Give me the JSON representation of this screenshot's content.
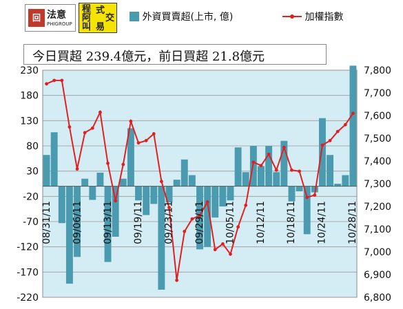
{
  "headline": "今日買超 239.4億元，前日買超 21.8億元",
  "logos": {
    "phigroup_name": "法意",
    "phigroup_sub": "PHIGROUP",
    "phigroup_mark": "回",
    "program_chars": [
      "程",
      "式",
      "阿",
      "交",
      "叫",
      "易"
    ]
  },
  "legend": {
    "bar_label": "外資買賣超(上市, 億)",
    "line_label": "加權指數"
  },
  "colors": {
    "bars": "#4a9bb0",
    "line": "#e02020",
    "plot_bg": "#d4ecf4",
    "grid": "#9a9a9a"
  },
  "chart_data": {
    "type": "bar+line",
    "x_tick_labels": [
      "08/31/11",
      "09/06/11",
      "09/13/11",
      "09/19/11",
      "09/23/11",
      "09/29/11",
      "10/05/11",
      "10/12/11",
      "10/18/11",
      "10/24/11",
      "10/28/11"
    ],
    "left_axis": {
      "ylim": [
        -220,
        230
      ],
      "ticks": [
        230,
        180,
        130,
        80,
        30,
        -20,
        -70,
        -120,
        -170,
        -220
      ]
    },
    "right_axis": {
      "ylim": [
        6800,
        7800
      ],
      "ticks": [
        "7,800",
        "7,700",
        "7,600",
        "7,500",
        "7,400",
        "7,300",
        "7,200",
        "7,100",
        "7,000",
        "6,900",
        "6,800"
      ]
    },
    "series": [
      {
        "name": "外資買賣超(上市, 億)",
        "type": "bar",
        "values": [
          62,
          107,
          -73,
          -193,
          -140,
          15,
          -27,
          27,
          -150,
          -100,
          15,
          115,
          -28,
          -57,
          -35,
          -205,
          -32,
          13,
          53,
          22,
          -125,
          -120,
          -62,
          -40,
          -28,
          77,
          28,
          80,
          40,
          80,
          28,
          90,
          -30,
          -10,
          -95,
          -12,
          135,
          62,
          5,
          22,
          239
        ]
      },
      {
        "name": "加權指數",
        "type": "line",
        "values": [
          7740,
          7755,
          7755,
          7550,
          7365,
          7525,
          7545,
          7615,
          7390,
          7225,
          7385,
          7575,
          7480,
          7490,
          7520,
          7310,
          7195,
          6875,
          7090,
          7145,
          7160,
          7220,
          7010,
          7035,
          6990,
          7110,
          7205,
          7395,
          7380,
          7430,
          7360,
          7460,
          7360,
          7355,
          7240,
          7250,
          7470,
          7490,
          7530,
          7560,
          7610
        ]
      }
    ],
    "grid": true
  }
}
